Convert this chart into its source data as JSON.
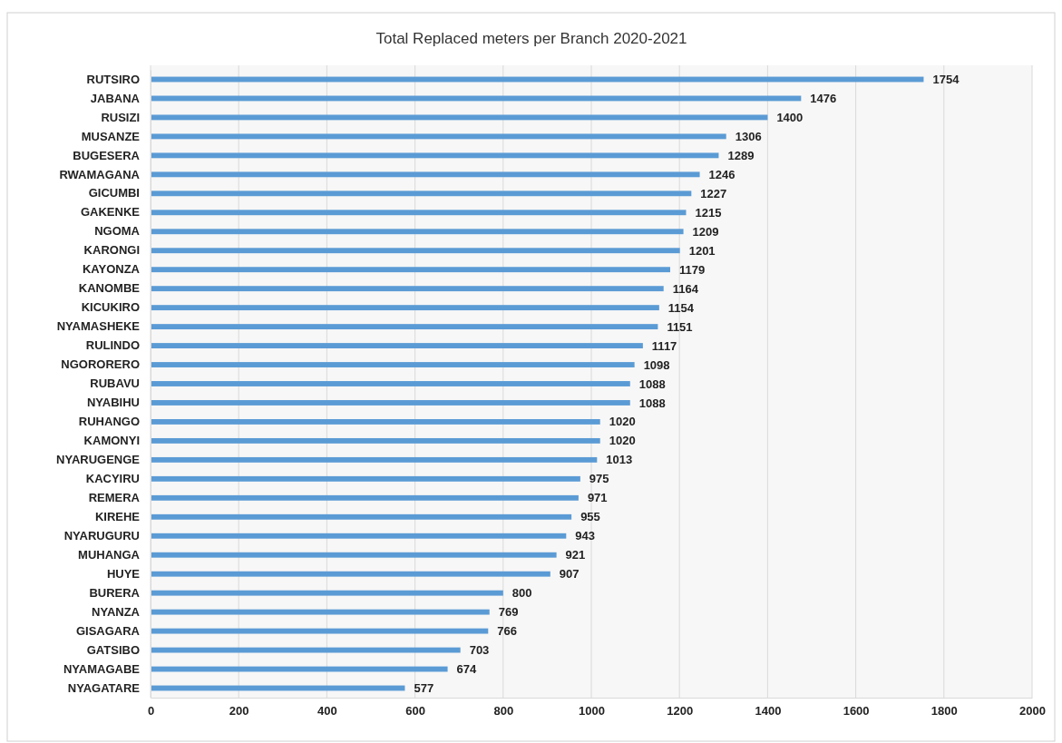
{
  "chart_data": {
    "type": "bar",
    "orientation": "horizontal",
    "title": "Total Replaced meters per Branch 2020-2021",
    "categories": [
      "RUTSIRO",
      "JABANA",
      "RUSIZI",
      "MUSANZE",
      "BUGESERA",
      "RWAMAGANA",
      "GICUMBI",
      "GAKENKE",
      "NGOMA",
      "KARONGI",
      "KAYONZA",
      "KANOMBE",
      "KICUKIRO",
      "NYAMASHEKE",
      "RULINDO",
      "NGORORERO",
      "RUBAVU",
      "NYABIHU",
      "RUHANGO",
      "KAMONYI",
      "NYARUGENGE",
      "KACYIRU",
      "REMERA",
      "KIREHE",
      "NYARUGURU",
      "MUHANGA",
      "HUYE",
      "BURERA",
      "NYANZA",
      "GISAGARA",
      "GATSIBO",
      "NYAMAGABE",
      "NYAGATARE"
    ],
    "values": [
      1754,
      1476,
      1400,
      1306,
      1289,
      1246,
      1227,
      1215,
      1209,
      1201,
      1179,
      1164,
      1154,
      1151,
      1117,
      1098,
      1088,
      1088,
      1020,
      1020,
      1013,
      975,
      971,
      955,
      943,
      921,
      907,
      800,
      769,
      766,
      703,
      674,
      577
    ],
    "color": "#5b9bd5",
    "xlim": [
      0,
      2000
    ],
    "xticks": [
      0,
      200,
      400,
      600,
      800,
      1000,
      1200,
      1400,
      1600,
      1800,
      2000
    ],
    "grid": "x",
    "data_labels": true
  }
}
